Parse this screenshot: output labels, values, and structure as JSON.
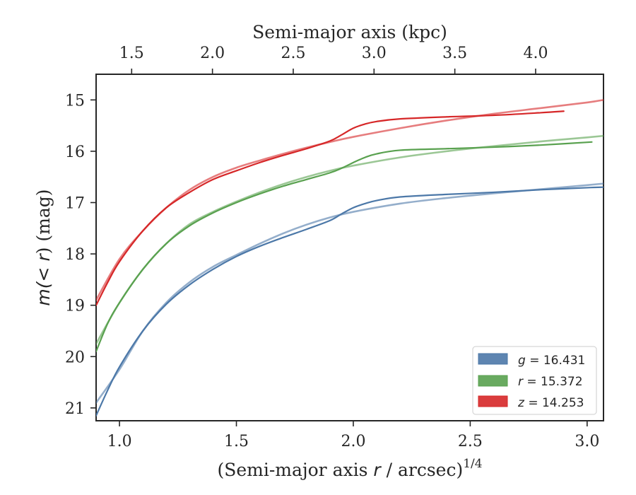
{
  "chart_data": {
    "type": "line",
    "xlabel_prefix": "(Semi-major axis ",
    "xlabel_var": "r",
    "xlabel_suffix": " / arcsec)",
    "xlabel_power": "1/4",
    "x2label": "Semi-major axis (kpc)",
    "ylabel_prefix": "m(",
    "ylabel_var": "< r",
    "ylabel_suffix": ") (mag)",
    "xlim": [
      0.9,
      3.07
    ],
    "ylim": [
      21.25,
      14.5
    ],
    "x2lim": [
      1.28,
      4.42
    ],
    "xticks": [
      1.0,
      1.5,
      2.0,
      2.5,
      3.0
    ],
    "xtick_labels": [
      "1.0",
      "1.5",
      "2.0",
      "2.5",
      "3.0"
    ],
    "yticks": [
      15,
      16,
      17,
      18,
      19,
      20,
      21
    ],
    "ytick_labels": [
      "15",
      "16",
      "17",
      "18",
      "19",
      "20",
      "21"
    ],
    "x2ticks": [
      1.5,
      2.0,
      2.5,
      3.0,
      3.5,
      4.0
    ],
    "x2tick_labels": [
      "1.5",
      "2.0",
      "2.5",
      "3.0",
      "3.5",
      "4.0"
    ],
    "legend_location": "lower-right",
    "series": [
      {
        "name": "g",
        "legend_var": "g",
        "legend_value": " = 16.431",
        "color": "#4c78a8",
        "data": {
          "x": [
            0.9,
            0.95,
            1.0,
            1.1,
            1.2,
            1.3,
            1.4,
            1.5,
            1.6,
            1.7,
            1.8,
            1.9,
            1.95,
            2.0,
            2.05,
            2.1,
            2.2,
            2.4,
            2.6,
            2.8,
            3.0,
            3.07
          ],
          "y": [
            21.15,
            20.65,
            20.2,
            19.5,
            18.98,
            18.6,
            18.3,
            18.05,
            17.85,
            17.68,
            17.52,
            17.35,
            17.22,
            17.1,
            17.02,
            16.96,
            16.89,
            16.84,
            16.8,
            16.75,
            16.71,
            16.7
          ]
        },
        "model": {
          "x": [
            0.9,
            1.0,
            1.1,
            1.2,
            1.3,
            1.4,
            1.5,
            1.6,
            1.7,
            1.8,
            1.9,
            2.0,
            2.2,
            2.4,
            2.6,
            2.8,
            3.0,
            3.07
          ],
          "y": [
            20.9,
            20.25,
            19.5,
            18.95,
            18.55,
            18.25,
            18.02,
            17.8,
            17.6,
            17.43,
            17.29,
            17.18,
            17.02,
            16.91,
            16.82,
            16.74,
            16.66,
            16.63
          ]
        }
      },
      {
        "name": "r",
        "legend_var": "r",
        "legend_value": " = 15.372",
        "color": "#59a14f",
        "data": {
          "x": [
            0.9,
            0.95,
            1.0,
            1.1,
            1.2,
            1.3,
            1.4,
            1.5,
            1.6,
            1.7,
            1.8,
            1.9,
            1.95,
            2.0,
            2.05,
            2.1,
            2.2,
            2.4,
            2.6,
            2.8,
            3.02
          ],
          "y": [
            19.9,
            19.35,
            18.95,
            18.3,
            17.8,
            17.45,
            17.2,
            17.0,
            16.83,
            16.68,
            16.55,
            16.42,
            16.33,
            16.22,
            16.12,
            16.05,
            15.98,
            15.95,
            15.92,
            15.88,
            15.82
          ]
        },
        "model": {
          "x": [
            0.9,
            1.0,
            1.1,
            1.2,
            1.3,
            1.4,
            1.5,
            1.6,
            1.7,
            1.8,
            1.9,
            2.0,
            2.2,
            2.4,
            2.6,
            2.8,
            3.0,
            3.07
          ],
          "y": [
            19.75,
            18.95,
            18.3,
            17.8,
            17.42,
            17.18,
            16.98,
            16.8,
            16.64,
            16.5,
            16.38,
            16.28,
            16.12,
            16.0,
            15.9,
            15.81,
            15.73,
            15.7
          ]
        }
      },
      {
        "name": "z",
        "legend_var": "z",
        "legend_value": " = 14.253",
        "color": "#d62728",
        "data": {
          "x": [
            0.9,
            0.95,
            1.0,
            1.1,
            1.2,
            1.3,
            1.4,
            1.5,
            1.6,
            1.7,
            1.8,
            1.9,
            1.95,
            2.0,
            2.05,
            2.1,
            2.2,
            2.4,
            2.6,
            2.8,
            2.9
          ],
          "y": [
            19.0,
            18.55,
            18.15,
            17.55,
            17.1,
            16.8,
            16.55,
            16.38,
            16.22,
            16.08,
            15.95,
            15.8,
            15.68,
            15.55,
            15.47,
            15.42,
            15.37,
            15.33,
            15.3,
            15.25,
            15.22
          ]
        },
        "model": {
          "x": [
            0.9,
            1.0,
            1.1,
            1.2,
            1.3,
            1.4,
            1.5,
            1.6,
            1.7,
            1.8,
            1.9,
            2.0,
            2.2,
            2.4,
            2.6,
            2.8,
            3.0,
            3.07
          ],
          "y": [
            18.9,
            18.1,
            17.55,
            17.1,
            16.75,
            16.5,
            16.32,
            16.18,
            16.05,
            15.93,
            15.82,
            15.72,
            15.55,
            15.4,
            15.27,
            15.16,
            15.05,
            15.0
          ]
        }
      }
    ]
  }
}
